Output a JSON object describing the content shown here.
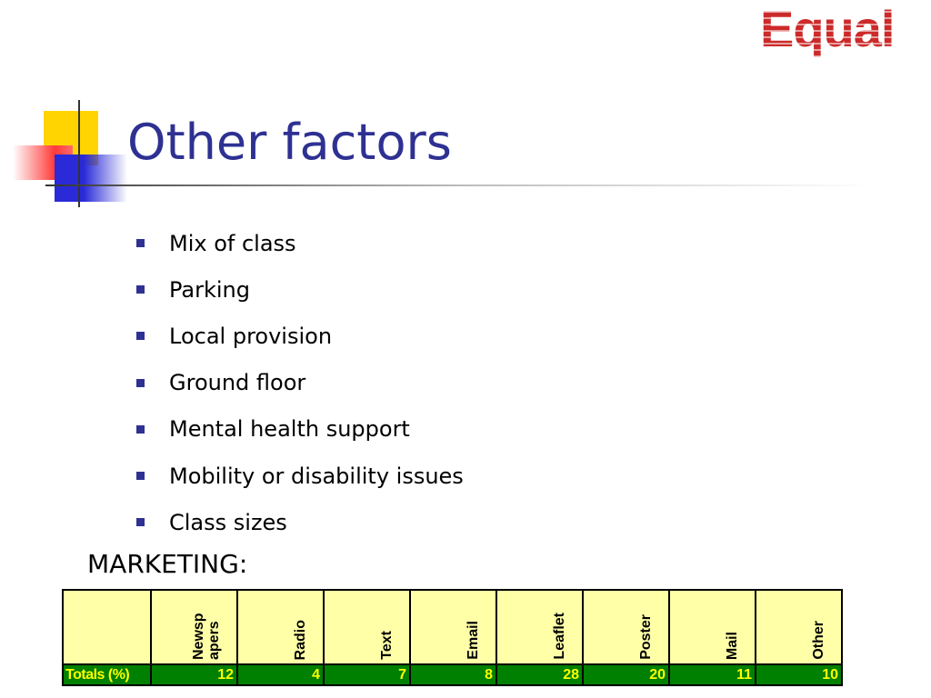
{
  "logo": {
    "text": "Equal"
  },
  "slide": {
    "title": "Other factors",
    "bullets": [
      "Mix of class",
      "Parking",
      "Local provision",
      "Ground floor",
      "Mental health support",
      "Mobility or disability issues",
      "Class sizes"
    ],
    "section_heading": "MARKETING:"
  },
  "table": {
    "columns": [
      "Newsp apers",
      "Radio",
      "Text",
      "Email",
      "Leaflet",
      "Poster",
      "Mail",
      "Other"
    ],
    "row_label": "Totals (%)",
    "values": [
      "12",
      "4",
      "7",
      "8",
      "28",
      "20",
      "11",
      "10"
    ]
  },
  "colors": {
    "title": "#2e3192",
    "logo": "#cc2a2a",
    "table_header_bg": "#ffffa8",
    "table_row_bg": "#008000",
    "table_row_text": "#ffff00"
  }
}
